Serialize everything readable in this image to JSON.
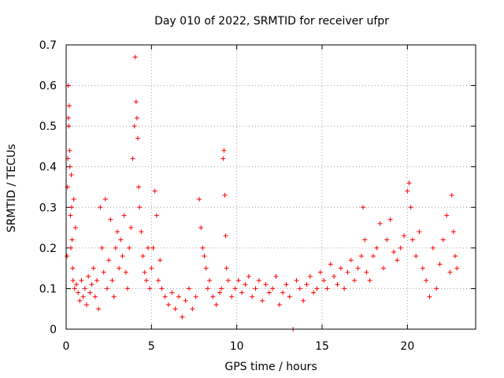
{
  "chart_data": {
    "type": "scatter",
    "title": "Day 010 of 2022, SRMTID for receiver ufpr",
    "xlabel": "GPS time / hours",
    "ylabel": "SRMTID / TECUs",
    "xlim": [
      0,
      24
    ],
    "ylim": [
      0,
      0.7
    ],
    "xticks": [
      0,
      5,
      10,
      15,
      20
    ],
    "xtick_labels": [
      "0",
      "5",
      "10",
      "15",
      "20"
    ],
    "yticks": [
      0,
      0.1,
      0.2,
      0.3,
      0.4,
      0.5,
      0.6,
      0.7
    ],
    "ytick_labels": [
      "0",
      "0.1",
      "0.2",
      "0.3",
      "0.4",
      "0.5",
      "0.6",
      "0.7"
    ],
    "grid": true,
    "marker": "+",
    "series": [
      {
        "name": "SRMTID",
        "color": "#ff0000",
        "points": [
          [
            0.05,
            0.18
          ],
          [
            0.08,
            0.35
          ],
          [
            0.1,
            0.42
          ],
          [
            0.12,
            0.6
          ],
          [
            0.13,
            0.52
          ],
          [
            0.15,
            0.5
          ],
          [
            0.18,
            0.55
          ],
          [
            0.2,
            0.44
          ],
          [
            0.22,
            0.4
          ],
          [
            0.25,
            0.28
          ],
          [
            0.28,
            0.2
          ],
          [
            0.3,
            0.38
          ],
          [
            0.32,
            0.3
          ],
          [
            0.35,
            0.22
          ],
          [
            0.38,
            0.15
          ],
          [
            0.4,
            0.12
          ],
          [
            0.45,
            0.32
          ],
          [
            0.5,
            0.1
          ],
          [
            0.55,
            0.25
          ],
          [
            0.6,
            0.11
          ],
          [
            0.7,
            0.09
          ],
          [
            0.8,
            0.07
          ],
          [
            0.9,
            0.12
          ],
          [
            1.0,
            0.08
          ],
          [
            1.1,
            0.1
          ],
          [
            1.2,
            0.06
          ],
          [
            1.3,
            0.13
          ],
          [
            1.4,
            0.09
          ],
          [
            1.5,
            0.11
          ],
          [
            1.6,
            0.15
          ],
          [
            1.7,
            0.08
          ],
          [
            1.8,
            0.12
          ],
          [
            1.9,
            0.05
          ],
          [
            2.0,
            0.3
          ],
          [
            2.1,
            0.2
          ],
          [
            2.2,
            0.14
          ],
          [
            2.3,
            0.32
          ],
          [
            2.4,
            0.1
          ],
          [
            2.5,
            0.17
          ],
          [
            2.6,
            0.27
          ],
          [
            2.7,
            0.12
          ],
          [
            2.8,
            0.08
          ],
          [
            2.9,
            0.2
          ],
          [
            3.0,
            0.24
          ],
          [
            3.1,
            0.15
          ],
          [
            3.2,
            0.22
          ],
          [
            3.3,
            0.18
          ],
          [
            3.4,
            0.28
          ],
          [
            3.5,
            0.14
          ],
          [
            3.6,
            0.1
          ],
          [
            3.7,
            0.2
          ],
          [
            3.8,
            0.25
          ],
          [
            3.9,
            0.42
          ],
          [
            4.0,
            0.5
          ],
          [
            4.05,
            0.67
          ],
          [
            4.1,
            0.56
          ],
          [
            4.15,
            0.52
          ],
          [
            4.2,
            0.47
          ],
          [
            4.25,
            0.35
          ],
          [
            4.3,
            0.3
          ],
          [
            4.4,
            0.24
          ],
          [
            4.5,
            0.18
          ],
          [
            4.6,
            0.14
          ],
          [
            4.7,
            0.12
          ],
          [
            4.8,
            0.2
          ],
          [
            4.9,
            0.1
          ],
          [
            5.0,
            0.15
          ],
          [
            5.1,
            0.2
          ],
          [
            5.2,
            0.34
          ],
          [
            5.3,
            0.28
          ],
          [
            5.4,
            0.12
          ],
          [
            5.5,
            0.17
          ],
          [
            5.6,
            0.1
          ],
          [
            5.8,
            0.08
          ],
          [
            6.0,
            0.06
          ],
          [
            6.2,
            0.09
          ],
          [
            6.4,
            0.05
          ],
          [
            6.6,
            0.08
          ],
          [
            6.8,
            0.03
          ],
          [
            7.0,
            0.07
          ],
          [
            7.2,
            0.1
          ],
          [
            7.4,
            0.05
          ],
          [
            7.6,
            0.08
          ],
          [
            7.8,
            0.32
          ],
          [
            7.9,
            0.25
          ],
          [
            8.0,
            0.2
          ],
          [
            8.1,
            0.18
          ],
          [
            8.2,
            0.15
          ],
          [
            8.3,
            0.1
          ],
          [
            8.4,
            0.12
          ],
          [
            8.6,
            0.08
          ],
          [
            8.8,
            0.06
          ],
          [
            9.0,
            0.09
          ],
          [
            9.1,
            0.1
          ],
          [
            9.2,
            0.42
          ],
          [
            9.25,
            0.44
          ],
          [
            9.3,
            0.33
          ],
          [
            9.35,
            0.23
          ],
          [
            9.4,
            0.15
          ],
          [
            9.5,
            0.12
          ],
          [
            9.7,
            0.08
          ],
          [
            9.9,
            0.1
          ],
          [
            10.1,
            0.12
          ],
          [
            10.3,
            0.09
          ],
          [
            10.5,
            0.11
          ],
          [
            10.7,
            0.13
          ],
          [
            10.9,
            0.08
          ],
          [
            11.1,
            0.1
          ],
          [
            11.3,
            0.12
          ],
          [
            11.5,
            0.07
          ],
          [
            11.7,
            0.11
          ],
          [
            11.9,
            0.09
          ],
          [
            12.1,
            0.1
          ],
          [
            12.3,
            0.13
          ],
          [
            12.5,
            0.06
          ],
          [
            12.7,
            0.09
          ],
          [
            12.9,
            0.11
          ],
          [
            13.1,
            0.08
          ],
          [
            13.3,
            0.0
          ],
          [
            13.5,
            0.12
          ],
          [
            13.7,
            0.1
          ],
          [
            13.9,
            0.07
          ],
          [
            14.1,
            0.11
          ],
          [
            14.3,
            0.13
          ],
          [
            14.5,
            0.09
          ],
          [
            14.7,
            0.1
          ],
          [
            14.9,
            0.14
          ],
          [
            15.1,
            0.12
          ],
          [
            15.3,
            0.1
          ],
          [
            15.5,
            0.16
          ],
          [
            15.7,
            0.13
          ],
          [
            15.9,
            0.11
          ],
          [
            16.1,
            0.15
          ],
          [
            16.3,
            0.1
          ],
          [
            16.5,
            0.14
          ],
          [
            16.7,
            0.17
          ],
          [
            16.9,
            0.12
          ],
          [
            17.1,
            0.15
          ],
          [
            17.3,
            0.18
          ],
          [
            17.4,
            0.3
          ],
          [
            17.5,
            0.22
          ],
          [
            17.6,
            0.14
          ],
          [
            17.8,
            0.12
          ],
          [
            18.0,
            0.18
          ],
          [
            18.2,
            0.2
          ],
          [
            18.4,
            0.26
          ],
          [
            18.6,
            0.15
          ],
          [
            18.8,
            0.22
          ],
          [
            19.0,
            0.27
          ],
          [
            19.2,
            0.19
          ],
          [
            19.4,
            0.17
          ],
          [
            19.6,
            0.2
          ],
          [
            19.8,
            0.23
          ],
          [
            20.0,
            0.34
          ],
          [
            20.1,
            0.36
          ],
          [
            20.2,
            0.3
          ],
          [
            20.3,
            0.22
          ],
          [
            20.5,
            0.18
          ],
          [
            20.7,
            0.24
          ],
          [
            20.9,
            0.15
          ],
          [
            21.1,
            0.12
          ],
          [
            21.3,
            0.08
          ],
          [
            21.5,
            0.2
          ],
          [
            21.7,
            0.1
          ],
          [
            21.9,
            0.16
          ],
          [
            22.1,
            0.22
          ],
          [
            22.3,
            0.28
          ],
          [
            22.5,
            0.14
          ],
          [
            22.6,
            0.33
          ],
          [
            22.7,
            0.24
          ],
          [
            22.8,
            0.18
          ],
          [
            22.9,
            0.15
          ]
        ]
      }
    ]
  }
}
